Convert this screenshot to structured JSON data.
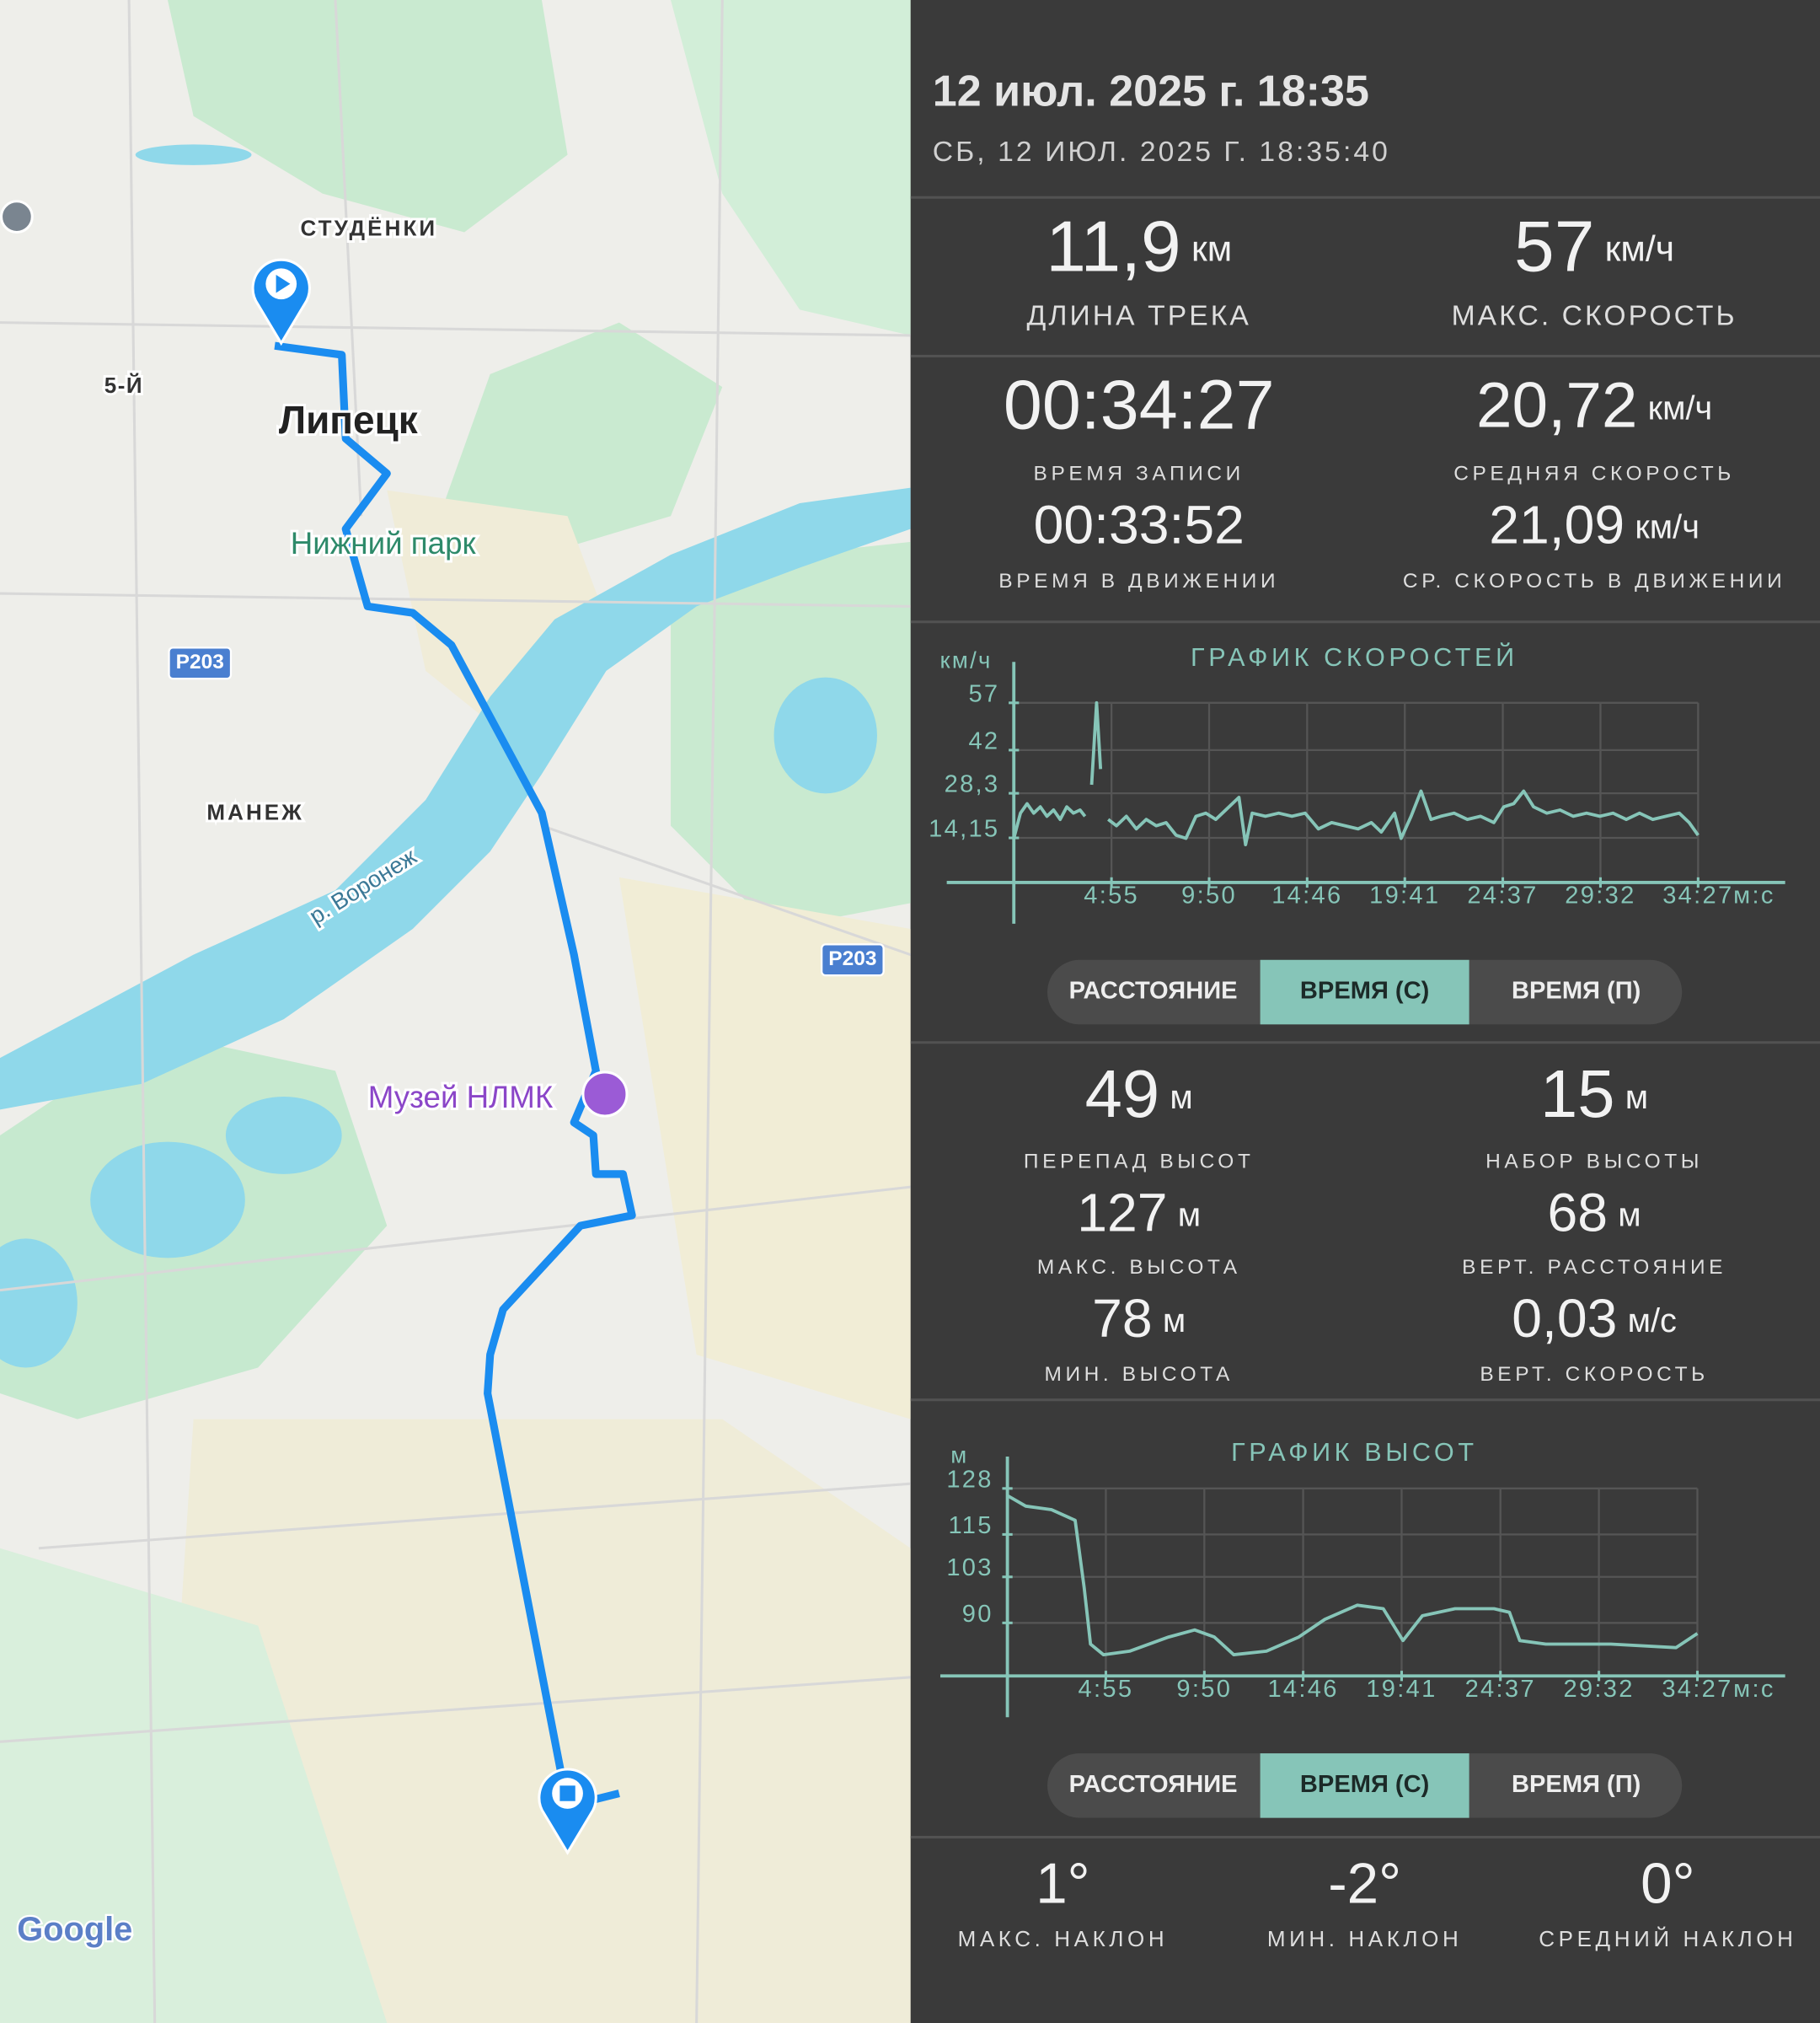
{
  "map": {
    "labels": [
      "СТУДЁНКИ",
      "5-Й",
      "Липецк",
      "Нижний парк",
      "Р203",
      "МАНЕЖ",
      "р. Воронеж",
      "Р203",
      "Музей НЛМК"
    ],
    "attribution": "Google"
  },
  "header": {
    "title": "12 июл. 2025 г. 18:35",
    "subtitle": "СБ, 12 ИЮЛ. 2025 Г. 18:35:40"
  },
  "track_stats": [
    {
      "value": "11,9",
      "unit": "км",
      "label": "ДЛИНА ТРЕКА"
    },
    {
      "value": "57",
      "unit": "км/ч",
      "label": "МАКС. СКОРОСТЬ"
    },
    {
      "value": "00:34:27",
      "label": "ВРЕМЯ ЗАПИСИ"
    },
    {
      "value": "20,72",
      "unit": "км/ч",
      "label": "СРЕДНЯЯ СКОРОСТЬ"
    },
    {
      "value": "00:33:52",
      "label": "ВРЕМЯ В ДВИЖЕНИИ"
    },
    {
      "value": "21,09",
      "unit": "км/ч",
      "label": "СР. СКОРОСТЬ В ДВИЖЕНИИ"
    }
  ],
  "tabs": [
    "РАССТОЯНИЕ",
    "ВРЕМЯ (С)",
    "ВРЕМЯ (П)"
  ],
  "selected_tab": 1,
  "elevation_stats": [
    {
      "value": "49",
      "unit": "м",
      "label": "ПЕРЕПАД ВЫСОТ"
    },
    {
      "value": "15",
      "unit": "м",
      "label": "НАБОР ВЫСОТЫ"
    },
    {
      "value": "127",
      "unit": "м",
      "label": "МАКС. ВЫСОТА"
    },
    {
      "value": "68",
      "unit": "м",
      "label": "ВЕРТ. РАССТОЯНИЕ"
    },
    {
      "value": "78",
      "unit": "м",
      "label": "МИН. ВЫСОТА"
    },
    {
      "value": "0,03",
      "unit": "м/с",
      "label": "ВЕРТ. СКОРОСТЬ"
    }
  ],
  "slope_stats": [
    {
      "value": "1°",
      "label": "МАКС. НАКЛОН"
    },
    {
      "value": "-2°",
      "label": "МИН. НАКЛОН"
    },
    {
      "value": "0°",
      "label": "СРЕДНИЙ НАКЛОН"
    }
  ],
  "chart_data": [
    {
      "type": "line",
      "title": "ГРАФИК СКОРОСТЕЙ",
      "y_label": "км/ч",
      "x_label": "м:с",
      "color": "#86c5b8",
      "grid": true,
      "x": [
        0,
        20,
        40,
        60,
        80,
        100,
        120,
        140,
        160,
        180,
        200,
        215,
        225,
        235,
        250,
        262,
        272,
        285,
        310,
        340,
        370,
        400,
        430,
        460,
        490,
        520,
        550,
        580,
        610,
        640,
        680,
        700,
        720,
        760,
        800,
        840,
        880,
        920,
        960,
        1000,
        1040,
        1080,
        1110,
        1150,
        1170,
        1200,
        1230,
        1260,
        1290,
        1330,
        1370,
        1410,
        1450,
        1480,
        1510,
        1540,
        1570,
        1610,
        1650,
        1690,
        1730,
        1770,
        1810,
        1850,
        1890,
        1930,
        1970,
        2010,
        2040,
        2067
      ],
      "values": [
        14,
        22,
        25,
        22,
        24,
        21,
        23,
        20,
        24,
        22,
        23,
        21,
        null,
        31,
        57,
        36,
        null,
        20,
        18,
        21,
        17,
        20,
        18,
        19,
        15,
        14,
        21,
        22,
        20,
        23,
        27,
        12,
        22,
        21,
        22,
        21,
        22,
        17,
        19,
        18,
        17,
        19,
        16,
        22,
        14,
        21,
        29,
        20,
        21,
        22,
        20,
        21,
        19,
        24,
        25,
        29,
        24,
        22,
        23,
        21,
        22,
        21,
        22,
        20,
        22,
        20,
        21,
        22,
        19,
        15
      ],
      "xlim": [
        0,
        2330
      ],
      "xticks": [
        {
          "value": 295,
          "label": "4:55"
        },
        {
          "value": 590,
          "label": "9:50"
        },
        {
          "value": 886,
          "label": "14:46"
        },
        {
          "value": 1181,
          "label": "19:41"
        },
        {
          "value": 1477,
          "label": "24:37"
        },
        {
          "value": 1772,
          "label": "29:32"
        },
        {
          "value": 2067,
          "label": "34:27"
        }
      ],
      "ylim": [
        0,
        70
      ],
      "yticks": [
        {
          "value": 14.15,
          "label": "14,15"
        },
        {
          "value": 28.3,
          "label": "28,3"
        },
        42,
        57
      ]
    },
    {
      "type": "line",
      "title": "ГРАФИК ВЫСОТ",
      "y_label": "м",
      "x_label": "м:с",
      "color": "#86c5b8",
      "grid": true,
      "x": [
        0,
        55,
        132,
        203,
        230,
        249,
        288,
        366,
        483,
        561,
        620,
        678,
        776,
        873,
        951,
        1048,
        1126,
        1185,
        1243,
        1341,
        1458,
        1504,
        1535,
        1613,
        1808,
        2003,
        2067
      ],
      "values": [
        126,
        123,
        122,
        119,
        100,
        84,
        81,
        82,
        86,
        88,
        86,
        81,
        82,
        86,
        91,
        95,
        94,
        85,
        92,
        94,
        94,
        93,
        85,
        84,
        84,
        83,
        87
      ],
      "xlim": [
        0,
        2330
      ],
      "xticks": [
        {
          "value": 295,
          "label": "4:55"
        },
        {
          "value": 590,
          "label": "9:50"
        },
        {
          "value": 886,
          "label": "14:46"
        },
        {
          "value": 1181,
          "label": "19:41"
        },
        {
          "value": 1477,
          "label": "24:37"
        },
        {
          "value": 1772,
          "label": "29:32"
        },
        {
          "value": 2067,
          "label": "34:27"
        }
      ],
      "ylim": [
        75,
        137
      ],
      "yticks": [
        90,
        103,
        115,
        128
      ]
    }
  ]
}
